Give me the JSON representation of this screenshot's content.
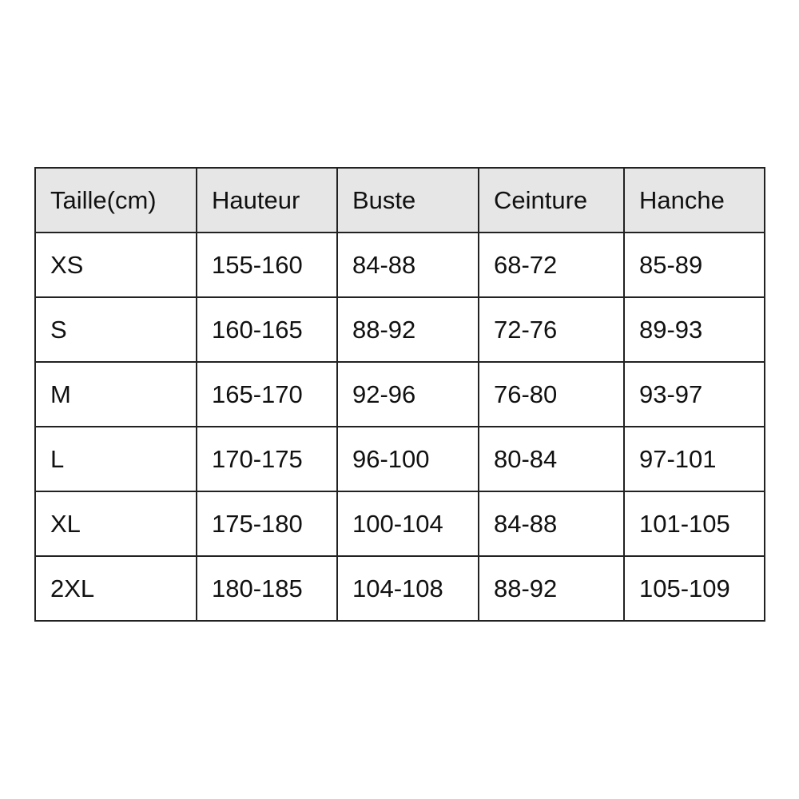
{
  "table": {
    "headers": [
      "Taille(cm)",
      "Hauteur",
      "Buste",
      "Ceinture",
      "Hanche"
    ],
    "rows": [
      [
        "XS",
        "155-160",
        "84-88",
        "68-72",
        "85-89"
      ],
      [
        "S",
        "160-165",
        "88-92",
        "72-76",
        "89-93"
      ],
      [
        "M",
        "165-170",
        "92-96",
        "76-80",
        "93-97"
      ],
      [
        "L",
        "170-175",
        "96-100",
        "80-84",
        "97-101"
      ],
      [
        "XL",
        "175-180",
        "100-104",
        "84-88",
        "101-105"
      ],
      [
        "2XL",
        "180-185",
        "104-108",
        "88-92",
        "105-109"
      ]
    ]
  }
}
